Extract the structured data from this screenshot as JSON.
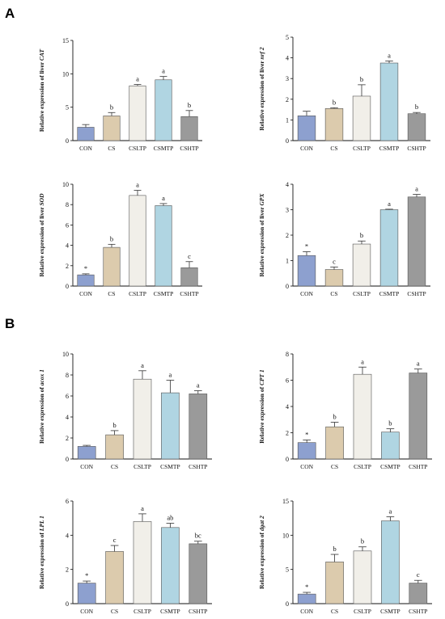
{
  "panel_labels": [
    "A",
    "B"
  ],
  "colors": [
    "#8da0cf",
    "#dccbad",
    "#f1efe9",
    "#b0d5e2",
    "#9a9a9a"
  ],
  "chart_data": [
    {
      "type": "bar",
      "ylabel_prefix": "Relative expression of liver ",
      "ylabel_gene": "CAT",
      "categories": [
        "CON",
        "CS",
        "CSLTP",
        "CSMTP",
        "CSHTP"
      ],
      "values": [
        2.0,
        3.7,
        8.2,
        9.1,
        3.6
      ],
      "errors": [
        0.4,
        0.5,
        0.2,
        0.5,
        0.9
      ],
      "labels": [
        "",
        "b",
        "a",
        "a",
        "b"
      ],
      "ylim": [
        0,
        15
      ],
      "yticks": [
        0,
        5,
        10,
        15
      ]
    },
    {
      "type": "bar",
      "ylabel_prefix": "Relative expression of liver ",
      "ylabel_gene": "nrf 2",
      "categories": [
        "CON",
        "CS",
        "CSLTP",
        "CSMTP",
        "CSHTP"
      ],
      "values": [
        1.2,
        1.55,
        2.15,
        3.75,
        1.3
      ],
      "errors": [
        0.22,
        0.04,
        0.55,
        0.1,
        0.06
      ],
      "labels": [
        "",
        "b",
        "b",
        "a",
        "b"
      ],
      "ylim": [
        0,
        5
      ],
      "yticks": [
        0,
        1,
        2,
        3,
        4,
        5
      ]
    },
    {
      "type": "bar",
      "ylabel_prefix": "Relative expression of liver ",
      "ylabel_gene": "SOD",
      "categories": [
        "CON",
        "CS",
        "CSLTP",
        "CSMTP",
        "CSHTP"
      ],
      "values": [
        1.1,
        3.8,
        8.9,
        7.9,
        1.8
      ],
      "errors": [
        0.1,
        0.3,
        0.5,
        0.2,
        0.6
      ],
      "labels": [
        "*",
        "b",
        "a",
        "a",
        "c"
      ],
      "ylim": [
        0,
        10
      ],
      "yticks": [
        0,
        2,
        4,
        6,
        8,
        10
      ]
    },
    {
      "type": "bar",
      "ylabel_prefix": "Relative expression of liver ",
      "ylabel_gene": "GPX",
      "categories": [
        "CON",
        "CS",
        "CSLTP",
        "CSMTP",
        "CSHTP"
      ],
      "values": [
        1.2,
        0.65,
        1.65,
        3.0,
        3.5
      ],
      "errors": [
        0.15,
        0.1,
        0.12,
        0.02,
        0.1
      ],
      "labels": [
        "*",
        "c",
        "b",
        "a",
        "a"
      ],
      "ylim": [
        0,
        4
      ],
      "yticks": [
        0,
        1,
        2,
        3,
        4
      ]
    },
    {
      "type": "bar",
      "ylabel_prefix": "Relative expression of ",
      "ylabel_gene": "acox 1",
      "categories": [
        "CON",
        "CS",
        "CSLTP",
        "CSMTP",
        "CSHTP"
      ],
      "values": [
        1.2,
        2.3,
        7.6,
        6.3,
        6.2
      ],
      "errors": [
        0.1,
        0.4,
        0.8,
        1.2,
        0.3
      ],
      "labels": [
        "",
        "b",
        "a",
        "a",
        "a"
      ],
      "ylim": [
        0,
        10
      ],
      "yticks": [
        0,
        2,
        4,
        6,
        8,
        10
      ]
    },
    {
      "type": "bar",
      "ylabel_prefix": "Relative expression of ",
      "ylabel_gene": "CPT 1",
      "categories": [
        "CON",
        "CS",
        "CSLTP",
        "CSMTP",
        "CSHTP"
      ],
      "values": [
        1.25,
        2.45,
        6.45,
        2.05,
        6.55
      ],
      "errors": [
        0.2,
        0.35,
        0.55,
        0.25,
        0.3
      ],
      "labels": [
        "*",
        "b",
        "a",
        "b",
        "a"
      ],
      "ylim": [
        0,
        8
      ],
      "yticks": [
        0,
        2,
        4,
        6,
        8
      ]
    },
    {
      "type": "bar",
      "ylabel_prefix": "Relative expression of ",
      "ylabel_gene": "LPL 1",
      "categories": [
        "CON",
        "CS",
        "CSLTP",
        "CSMTP",
        "CSHTP"
      ],
      "values": [
        1.2,
        3.05,
        4.8,
        4.45,
        3.5
      ],
      "errors": [
        0.12,
        0.35,
        0.45,
        0.25,
        0.15
      ],
      "labels": [
        "*",
        "c",
        "a",
        "ab",
        "bc"
      ],
      "ylim": [
        0,
        6
      ],
      "yticks": [
        0,
        2,
        4,
        6
      ]
    },
    {
      "type": "bar",
      "ylabel_prefix": "Relative expression of ",
      "ylabel_gene": "dgat 2",
      "categories": [
        "CON",
        "CS",
        "CSLTP",
        "CSMTP",
        "CSHTP"
      ],
      "values": [
        1.4,
        6.1,
        7.7,
        12.1,
        3.0
      ],
      "errors": [
        0.25,
        1.1,
        0.6,
        0.6,
        0.4
      ],
      "labels": [
        "*",
        "b",
        "b",
        "a",
        "c"
      ],
      "ylim": [
        0,
        15
      ],
      "yticks": [
        0,
        5,
        10,
        15
      ]
    }
  ]
}
